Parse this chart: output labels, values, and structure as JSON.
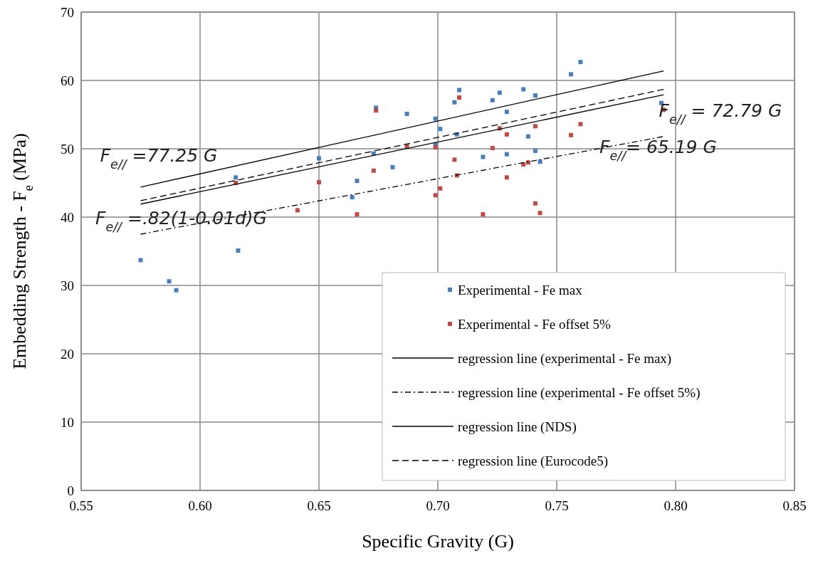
{
  "chart_data": {
    "type": "scatter",
    "xlabel": "Specific Gravity  (G)",
    "ylabel": "Embedding Strength - F$_{e}$    (MPa)",
    "xlim": [
      0.55,
      0.85
    ],
    "xticks": [
      {
        "value": 0.55,
        "label": "0.55"
      },
      {
        "value": 0.6,
        "label": "0.60"
      },
      {
        "value": 0.65,
        "label": "0.65"
      },
      {
        "value": 0.7,
        "label": "0.70"
      },
      {
        "value": 0.75,
        "label": "0.75"
      },
      {
        "value": 0.8,
        "label": "0.80"
      },
      {
        "value": 0.85,
        "label": "0.85"
      }
    ],
    "ylim": [
      0,
      70
    ],
    "yticks": [
      0,
      10,
      20,
      30,
      40,
      50,
      60,
      70
    ],
    "grid": true,
    "legend": "bottom right",
    "series": [
      {
        "name": "Experimental  -  Fe max",
        "color": "#4a7ebb",
        "marker": "square",
        "x": [
          0.575,
          0.587,
          0.59,
          0.615,
          0.616,
          0.65,
          0.664,
          0.666,
          0.673,
          0.674,
          0.681,
          0.687,
          0.699,
          0.699,
          0.701,
          0.707,
          0.708,
          0.709,
          0.719,
          0.723,
          0.726,
          0.729,
          0.729,
          0.736,
          0.738,
          0.741,
          0.741,
          0.743,
          0.756,
          0.76,
          0.794
        ],
        "values": [
          33.7,
          30.6,
          29.3,
          45.8,
          35.1,
          48.6,
          42.9,
          45.3,
          49.3,
          56.0,
          47.3,
          55.1,
          54.4,
          50.6,
          52.9,
          56.8,
          52.1,
          58.6,
          48.8,
          57.1,
          58.2,
          49.2,
          55.4,
          58.7,
          51.8,
          49.7,
          57.8,
          48.1,
          60.9,
          62.7,
          56.7
        ]
      },
      {
        "name": "Experimental - Fe offset 5%",
        "color": "#be4b48",
        "marker": "square",
        "x": [
          0.615,
          0.641,
          0.65,
          0.666,
          0.673,
          0.674,
          0.687,
          0.699,
          0.699,
          0.701,
          0.707,
          0.708,
          0.709,
          0.719,
          0.723,
          0.726,
          0.729,
          0.729,
          0.736,
          0.738,
          0.741,
          0.741,
          0.743,
          0.756,
          0.76,
          0.795
        ],
        "values": [
          45.0,
          41.0,
          45.1,
          40.4,
          46.8,
          55.6,
          50.4,
          50.2,
          43.2,
          44.2,
          48.4,
          46.1,
          57.5,
          40.4,
          50.1,
          53.0,
          52.1,
          45.8,
          47.7,
          48.0,
          53.3,
          42.0,
          40.6,
          52.0,
          53.6,
          55.7
        ]
      },
      {
        "name": "regression line (experimental - Fe max)",
        "color": "#000000",
        "type": "line",
        "line_style": "solid",
        "marker": "none",
        "x": [
          0.575,
          0.795
        ],
        "values": [
          41.9,
          57.9
        ]
      },
      {
        "name": "regression line (experimental - Fe offset 5%)",
        "color": "#000000",
        "type": "line",
        "line_style": "dashdot",
        "marker": "none",
        "x": [
          0.575,
          0.795
        ],
        "values": [
          37.5,
          51.8
        ]
      },
      {
        "name": "regression line (NDS)",
        "color": "#000000",
        "type": "line",
        "line_style": "solid",
        "marker": "none",
        "x": [
          0.575,
          0.795
        ],
        "values": [
          44.4,
          61.4
        ]
      },
      {
        "name": "regression line (Eurocode5)",
        "color": "#000000",
        "type": "line",
        "line_style": "dashed",
        "marker": "none",
        "x": [
          0.575,
          0.795
        ],
        "values": [
          42.4,
          58.7
        ]
      }
    ],
    "annotations": [
      "F$_{e//}$ =77.25 G",
      "F$_{e//}$ =.82(1-0.01d)G",
      "F$_{e//}$ = 72.79 G",
      "F$_{e//}$= 65.19 G"
    ]
  }
}
